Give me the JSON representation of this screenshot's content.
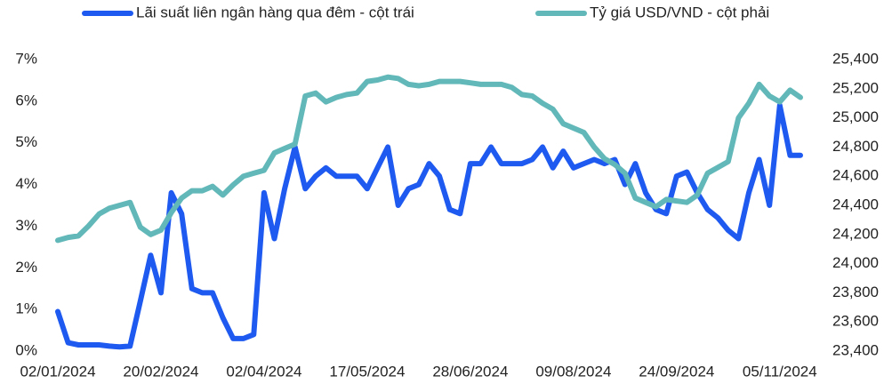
{
  "chart_data": {
    "type": "line",
    "categories": [
      "02/01/2024",
      null,
      null,
      null,
      null,
      null,
      null,
      null,
      null,
      null,
      "20/02/2024",
      null,
      null,
      null,
      null,
      null,
      null,
      null,
      null,
      null,
      "02/04/2024",
      null,
      null,
      null,
      null,
      null,
      null,
      null,
      null,
      null,
      "17/05/2024",
      null,
      null,
      null,
      null,
      null,
      null,
      null,
      null,
      null,
      "28/06/2024",
      null,
      null,
      null,
      null,
      null,
      null,
      null,
      null,
      null,
      "09/08/2024",
      null,
      null,
      null,
      null,
      null,
      null,
      null,
      null,
      null,
      "24/09/2024",
      null,
      null,
      null,
      null,
      null,
      null,
      null,
      null,
      null,
      "05/11/2024",
      null,
      null
    ],
    "series": [
      {
        "name": "Lãi suất liên ngân hàng qua đêm - cột trái",
        "color": "#1f5af0",
        "axis": "y",
        "values": [
          0.95,
          0.2,
          0.15,
          0.15,
          0.15,
          0.12,
          0.1,
          0.12,
          1.2,
          2.3,
          1.4,
          3.8,
          3.3,
          1.5,
          1.4,
          1.4,
          0.8,
          0.3,
          0.3,
          0.4,
          3.8,
          2.7,
          3.9,
          4.9,
          3.9,
          4.2,
          4.4,
          4.2,
          4.2,
          4.2,
          3.9,
          4.4,
          4.9,
          3.5,
          3.9,
          4.0,
          4.5,
          4.2,
          3.4,
          3.3,
          4.5,
          4.5,
          4.9,
          4.5,
          4.5,
          4.5,
          4.6,
          4.9,
          4.4,
          4.8,
          4.4,
          4.5,
          4.6,
          4.5,
          4.6,
          4.0,
          4.5,
          3.8,
          3.4,
          3.3,
          4.2,
          4.3,
          3.8,
          3.4,
          3.2,
          2.9,
          2.7,
          3.8,
          4.6,
          3.5,
          5.9,
          4.7,
          4.7
        ]
      },
      {
        "name": "Tỷ giá USD/VND - cột phải",
        "color": "#62b8b8",
        "axis": "y2",
        "values": [
          24160,
          24180,
          24190,
          24260,
          24340,
          24380,
          24400,
          24420,
          24250,
          24200,
          24230,
          24350,
          24450,
          24500,
          24500,
          24530,
          24470,
          24540,
          24600,
          24620,
          24640,
          24760,
          24790,
          24820,
          25150,
          25170,
          25110,
          25140,
          25160,
          25170,
          25250,
          25260,
          25280,
          25270,
          25230,
          25220,
          25230,
          25250,
          25250,
          25250,
          25240,
          25230,
          25230,
          25230,
          25210,
          25160,
          25150,
          25100,
          25060,
          24960,
          24930,
          24900,
          24800,
          24720,
          24680,
          24620,
          24450,
          24420,
          24390,
          24440,
          24430,
          24420,
          24470,
          24620,
          24660,
          24700,
          25000,
          25100,
          25230,
          25150,
          25110,
          25190,
          25140
        ]
      }
    ],
    "ylim": [
      0,
      7
    ],
    "yticks": [
      {
        "value": 0,
        "label": "0%"
      },
      {
        "value": 1,
        "label": "1%"
      },
      {
        "value": 2,
        "label": "2%"
      },
      {
        "value": 3,
        "label": "3%"
      },
      {
        "value": 4,
        "label": "4%"
      },
      {
        "value": 5,
        "label": "5%"
      },
      {
        "value": 6,
        "label": "6%"
      },
      {
        "value": 7,
        "label": "7%"
      }
    ],
    "y2lim": [
      23400,
      25400
    ],
    "y2ticks": [
      {
        "value": 23400,
        "label": "23,400"
      },
      {
        "value": 23600,
        "label": "23,600"
      },
      {
        "value": 23800,
        "label": "23,800"
      },
      {
        "value": 24000,
        "label": "24,000"
      },
      {
        "value": 24200,
        "label": "24,200"
      },
      {
        "value": 24400,
        "label": "24,400"
      },
      {
        "value": 24600,
        "label": "24,600"
      },
      {
        "value": 24800,
        "label": "24,800"
      },
      {
        "value": 25000,
        "label": "25,000"
      },
      {
        "value": 25200,
        "label": "25,200"
      },
      {
        "value": 25400,
        "label": "25,400"
      }
    ],
    "grid": false,
    "legend": "top"
  }
}
